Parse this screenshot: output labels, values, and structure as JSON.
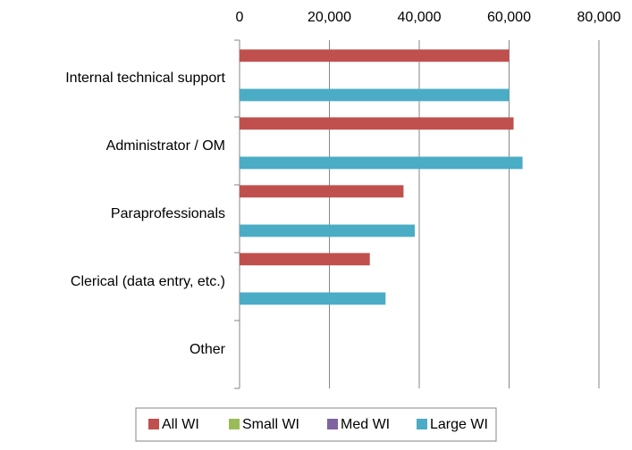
{
  "chart_data": {
    "type": "bar",
    "orientation": "horizontal",
    "categories": [
      "Internal technical support",
      "Administrator / OM",
      "Paraprofessionals",
      "Clerical (data entry, etc.)",
      "Other"
    ],
    "series": [
      {
        "name": "All WI",
        "color": "#c0504d",
        "values": [
          60000,
          61000,
          36500,
          29000,
          null
        ]
      },
      {
        "name": "Small WI",
        "color": "#9bbb59",
        "values": [
          null,
          null,
          null,
          null,
          null
        ]
      },
      {
        "name": "Med WI",
        "color": "#8064a2",
        "values": [
          null,
          null,
          null,
          null,
          null
        ]
      },
      {
        "name": "Large WI",
        "color": "#4bacc6",
        "values": [
          60000,
          63000,
          39000,
          32500,
          null
        ]
      }
    ],
    "xlim": [
      0,
      80000
    ],
    "xticks": [
      0,
      {
        "value": 20000,
        "label": "20,000"
      },
      {
        "value": 40000,
        "label": "40,000"
      },
      {
        "value": 60000,
        "label": "60,000"
      },
      {
        "value": 80000,
        "label": "80,000"
      }
    ],
    "grid": true,
    "legend": "bottom"
  }
}
